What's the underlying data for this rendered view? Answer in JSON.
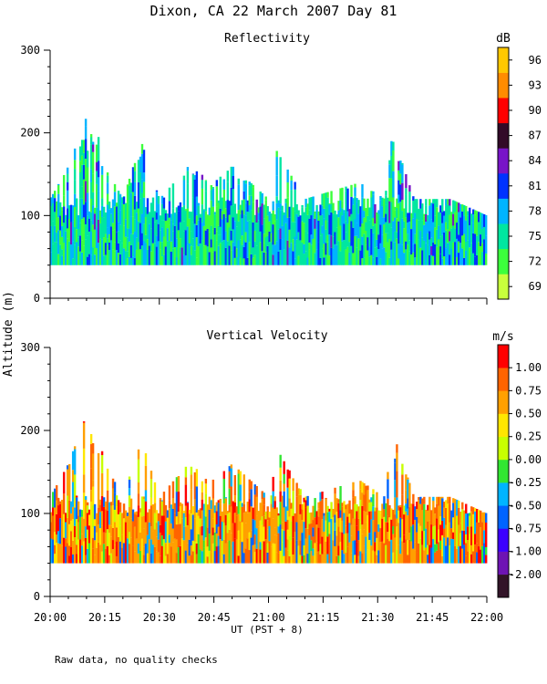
{
  "title": "Dixon, CA 22 March 2007  Day  81",
  "footnote": "Raw data, no quality checks",
  "ylabel": "Altitude (m)",
  "xlabel": "UT  (PST + 8)",
  "colors": {
    "reflectivity": [
      "#c8ff3c",
      "#3cff3c",
      "#00e6a0",
      "#00b4ff",
      "#0032ff",
      "#7814c8",
      "#320a28",
      "#ff0000",
      "#ff8c00",
      "#ffc800"
    ],
    "velocity": [
      "#321428",
      "#6e14b4",
      "#3c00ff",
      "#0064ff",
      "#00b4ff",
      "#32e632",
      "#c8ff00",
      "#ffe600",
      "#ffa000",
      "#ff6400",
      "#ff0000"
    ]
  },
  "chart_data": [
    {
      "type": "heatmap",
      "title": "Reflectivity",
      "x_ticks": [
        "20:00",
        "20:15",
        "20:30",
        "20:45",
        "21:00",
        "21:15",
        "21:30",
        "21:45",
        "22:00"
      ],
      "x_range": [
        "20:00",
        "22:00"
      ],
      "y_ticks": [
        0,
        100,
        200,
        300
      ],
      "ylim": [
        0,
        300
      ],
      "data_range_m": [
        40,
        220
      ],
      "colorbar": {
        "unit": "dB",
        "tick_labels": [
          "69",
          "72",
          "75",
          "78",
          "81",
          "84",
          "87",
          "90",
          "93",
          "96"
        ]
      },
      "column_tops_m": {
        "times": [
          "20:00",
          "20:05",
          "20:10",
          "20:12",
          "20:15",
          "20:20",
          "20:25",
          "20:30",
          "20:38",
          "20:45",
          "20:50",
          "21:00",
          "21:02",
          "21:10",
          "21:25",
          "21:32",
          "21:34",
          "21:40",
          "21:50",
          "22:00"
        ],
        "top_altitude_m": [
          120,
          160,
          220,
          220,
          160,
          120,
          190,
          120,
          160,
          140,
          160,
          120,
          180,
          120,
          140,
          120,
          200,
          120,
          120,
          100
        ]
      }
    },
    {
      "type": "heatmap",
      "title": "Vertical Velocity",
      "x_ticks": [
        "20:00",
        "20:15",
        "20:30",
        "20:45",
        "21:00",
        "21:15",
        "21:30",
        "21:45",
        "22:00"
      ],
      "x_range": [
        "20:00",
        "22:00"
      ],
      "y_ticks": [
        0,
        100,
        200,
        300
      ],
      "ylim": [
        0,
        300
      ],
      "data_range_m": [
        40,
        220
      ],
      "colorbar": {
        "unit": "m/s",
        "tick_labels": [
          "-2.00",
          "-1.00",
          "-0.75",
          "-0.50",
          "-0.25",
          "0.00",
          "0.25",
          "0.50",
          "0.75",
          "1.00"
        ]
      }
    }
  ]
}
